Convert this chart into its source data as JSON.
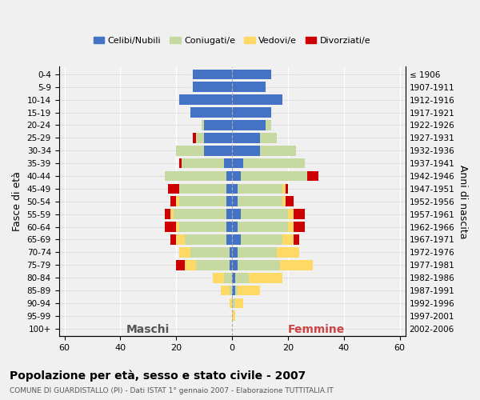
{
  "age_groups": [
    "0-4",
    "5-9",
    "10-14",
    "15-19",
    "20-24",
    "25-29",
    "30-34",
    "35-39",
    "40-44",
    "45-49",
    "50-54",
    "55-59",
    "60-64",
    "65-69",
    "70-74",
    "75-79",
    "80-84",
    "85-89",
    "90-94",
    "95-99",
    "100+"
  ],
  "birth_years": [
    "2002-2006",
    "1997-2001",
    "1992-1996",
    "1987-1991",
    "1982-1986",
    "1977-1981",
    "1972-1976",
    "1967-1971",
    "1962-1966",
    "1957-1961",
    "1952-1956",
    "1947-1951",
    "1942-1946",
    "1937-1941",
    "1932-1936",
    "1927-1931",
    "1922-1926",
    "1917-1921",
    "1912-1916",
    "1907-1911",
    "≤ 1906"
  ],
  "colors": {
    "celibi": "#4472C4",
    "coniugati": "#c5d9a0",
    "vedovi": "#ffd966",
    "divorziati": "#cc0000"
  },
  "male": {
    "celibi": [
      14,
      14,
      19,
      15,
      10,
      10,
      10,
      3,
      2,
      2,
      2,
      2,
      2,
      2,
      1,
      1,
      0,
      0,
      0,
      0,
      0
    ],
    "coniugati": [
      0,
      0,
      0,
      0,
      1,
      3,
      10,
      15,
      22,
      17,
      17,
      19,
      17,
      15,
      14,
      12,
      3,
      1,
      0,
      0,
      0
    ],
    "vedovi": [
      0,
      0,
      0,
      0,
      0,
      0,
      0,
      0,
      0,
      0,
      1,
      1,
      1,
      3,
      4,
      4,
      4,
      3,
      1,
      0,
      0
    ],
    "divorziati": [
      0,
      0,
      0,
      0,
      0,
      1,
      0,
      1,
      0,
      4,
      2,
      2,
      4,
      2,
      0,
      3,
      0,
      0,
      0,
      0,
      0
    ]
  },
  "female": {
    "celibi": [
      14,
      12,
      18,
      14,
      12,
      10,
      10,
      4,
      3,
      2,
      2,
      3,
      2,
      3,
      2,
      2,
      1,
      1,
      0,
      0,
      0
    ],
    "coniugati": [
      0,
      0,
      0,
      0,
      2,
      6,
      13,
      22,
      24,
      16,
      16,
      17,
      18,
      15,
      14,
      15,
      5,
      1,
      1,
      0,
      0
    ],
    "vedovi": [
      0,
      0,
      0,
      0,
      0,
      0,
      0,
      0,
      0,
      1,
      1,
      2,
      2,
      4,
      8,
      12,
      12,
      8,
      3,
      1,
      0
    ],
    "divorziati": [
      0,
      0,
      0,
      0,
      0,
      0,
      0,
      0,
      4,
      1,
      3,
      4,
      4,
      2,
      0,
      0,
      0,
      0,
      0,
      0,
      0
    ]
  },
  "xlim": [
    -62,
    62
  ],
  "xticks": [
    -60,
    -40,
    -20,
    0,
    20,
    40,
    60
  ],
  "xtick_labels": [
    "60",
    "40",
    "20",
    "0",
    "20",
    "40",
    "60"
  ],
  "title": "Popolazione per età, sesso e stato civile - 2007",
  "subtitle": "COMUNE DI GUARDISTALLO (PI) - Dati ISTAT 1° gennaio 2007 - Elaborazione TUTTITALIA.IT",
  "ylabel_left": "Fasce di età",
  "ylabel_right": "Anni di nascita",
  "maschi_label": "Maschi",
  "femmine_label": "Femmine",
  "legend_labels": [
    "Celibi/Nubili",
    "Coniugati/e",
    "Vedovi/e",
    "Divorziati/e"
  ],
  "bg_color": "#f0f0f0",
  "bar_height": 0.8
}
